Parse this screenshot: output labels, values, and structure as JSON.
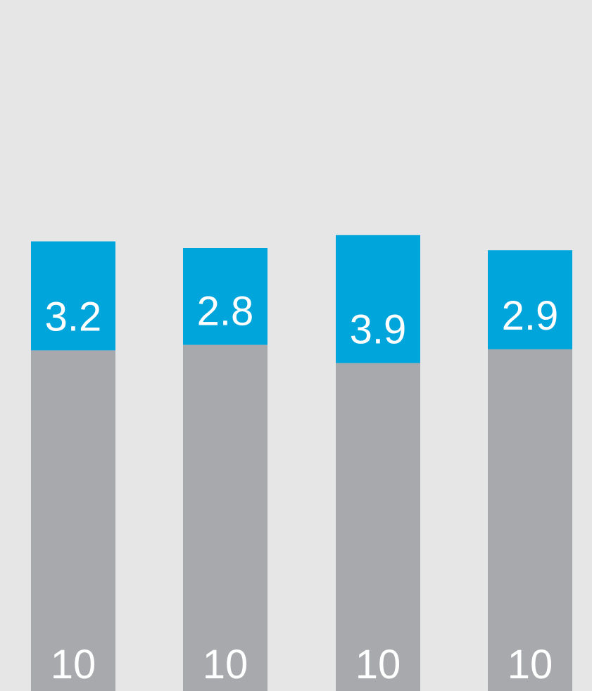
{
  "chart_data": {
    "type": "bar",
    "stacked": true,
    "categories": [
      "",
      "",
      "",
      ""
    ],
    "series": [
      {
        "key": "base",
        "color": "#a8a9ac",
        "values": [
          10,
          10,
          10,
          10
        ],
        "labels": [
          "10",
          "10",
          "10",
          "10"
        ]
      },
      {
        "key": "top",
        "color": "#00a5db",
        "values": [
          3.2,
          2.8,
          3.9,
          2.9
        ],
        "labels": [
          "3.2",
          "2.8",
          "3.9",
          "2.9"
        ]
      }
    ],
    "background": "#e6e6e6",
    "label_color": "#ffffff",
    "grid": false,
    "legend": "none"
  }
}
